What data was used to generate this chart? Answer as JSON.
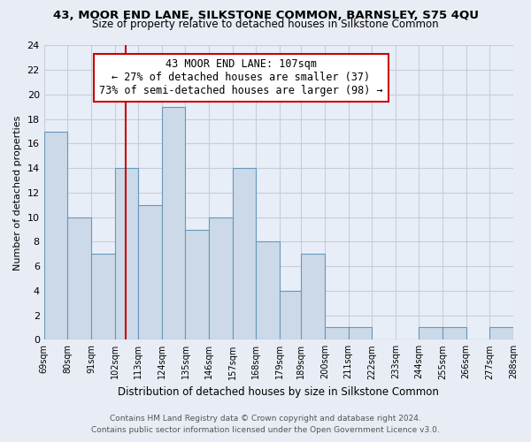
{
  "title_line1": "43, MOOR END LANE, SILKSTONE COMMON, BARNSLEY, S75 4QU",
  "title_line2": "Size of property relative to detached houses in Silkstone Common",
  "xlabel": "Distribution of detached houses by size in Silkstone Common",
  "ylabel": "Number of detached properties",
  "bins": [
    69,
    80,
    91,
    102,
    113,
    124,
    135,
    146,
    157,
    168,
    179,
    189,
    200,
    211,
    222,
    233,
    244,
    255,
    266,
    277,
    288
  ],
  "bin_labels": [
    "69sqm",
    "80sqm",
    "91sqm",
    "102sqm",
    "113sqm",
    "124sqm",
    "135sqm",
    "146sqm",
    "157sqm",
    "168sqm",
    "179sqm",
    "189sqm",
    "200sqm",
    "211sqm",
    "222sqm",
    "233sqm",
    "244sqm",
    "255sqm",
    "266sqm",
    "277sqm",
    "288sqm"
  ],
  "counts": [
    17,
    10,
    7,
    14,
    11,
    19,
    9,
    10,
    14,
    8,
    4,
    7,
    1,
    1,
    0,
    0,
    1,
    1,
    0,
    1
  ],
  "bar_color": "#ccd9e8",
  "bar_edge_color": "#6699bb",
  "vline_x": 107,
  "vline_color": "#cc0000",
  "annotation_line1": "43 MOOR END LANE: 107sqm",
  "annotation_line2": "← 27% of detached houses are smaller (37)",
  "annotation_line3": "73% of semi-detached houses are larger (98) →",
  "annotation_box_color": "white",
  "annotation_box_edge_color": "#cc0000",
  "ylim": [
    0,
    24
  ],
  "yticks": [
    0,
    2,
    4,
    6,
    8,
    10,
    12,
    14,
    16,
    18,
    20,
    22,
    24
  ],
  "footer_line1": "Contains HM Land Registry data © Crown copyright and database right 2024.",
  "footer_line2": "Contains public sector information licensed under the Open Government Licence v3.0.",
  "background_color": "#e8ecf4",
  "grid_color": "#c8ccd8",
  "plot_bg_color": "#e8eef8"
}
